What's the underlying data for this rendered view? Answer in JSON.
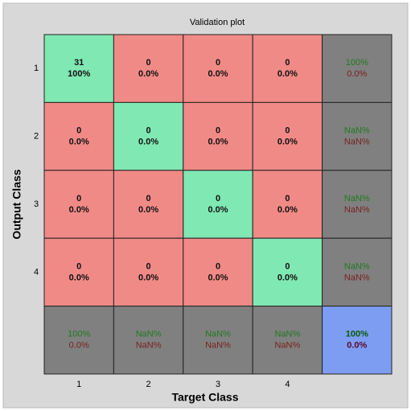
{
  "chart_data": {
    "type": "confusion_matrix",
    "title": "Validation plot",
    "xlabel": "Target Class",
    "ylabel": "Output Class",
    "categories": [
      "1",
      "2",
      "3",
      "4"
    ],
    "rows": [
      {
        "counts": [
          31,
          0,
          0,
          0
        ],
        "percents": [
          "100%",
          "0.0%",
          "0.0%",
          "0.0%"
        ],
        "summary": [
          "100%",
          "0.0%"
        ]
      },
      {
        "counts": [
          0,
          0,
          0,
          0
        ],
        "percents": [
          "0.0%",
          "0.0%",
          "0.0%",
          "0.0%"
        ],
        "summary": [
          "NaN%",
          "NaN%"
        ]
      },
      {
        "counts": [
          0,
          0,
          0,
          0
        ],
        "percents": [
          "0.0%",
          "0.0%",
          "0.0%",
          "0.0%"
        ],
        "summary": [
          "NaN%",
          "NaN%"
        ]
      },
      {
        "counts": [
          0,
          0,
          0,
          0
        ],
        "percents": [
          "0.0%",
          "0.0%",
          "0.0%",
          "0.0%"
        ],
        "summary": [
          "NaN%",
          "NaN%"
        ]
      }
    ],
    "column_summary": [
      [
        "100%",
        "0.0%"
      ],
      [
        "NaN%",
        "NaN%"
      ],
      [
        "NaN%",
        "NaN%"
      ],
      [
        "NaN%",
        "NaN%"
      ]
    ],
    "overall": [
      "100%",
      "0.0%"
    ],
    "colors": {
      "correct": "#80e8b2",
      "wrong": "#f08a86",
      "summary": "#808080",
      "overall": "#7d9df2"
    }
  }
}
